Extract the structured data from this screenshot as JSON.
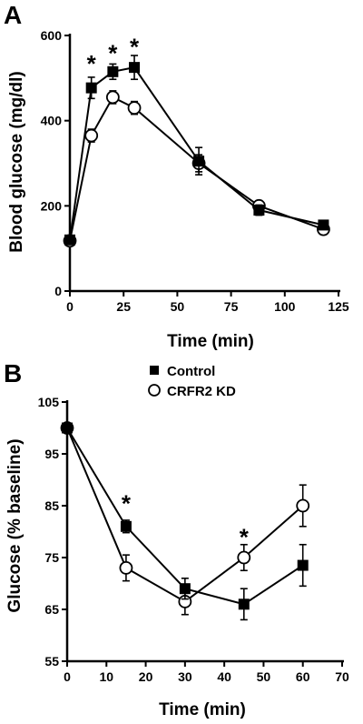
{
  "chart_data": [
    {
      "panel": "A",
      "type": "line",
      "xlabel": "Time (min)",
      "ylabel": "Blood glucose (mg/dl)",
      "xlim": [
        0,
        125
      ],
      "ylim": [
        0,
        600
      ],
      "xticks": [
        0,
        25,
        50,
        75,
        100,
        125
      ],
      "yticks": [
        0,
        200,
        400,
        600
      ],
      "grid": false,
      "series": [
        {
          "marker": "filled-square",
          "x": [
            0,
            10,
            20,
            30,
            60,
            88,
            118
          ],
          "y": [
            120,
            477,
            515,
            525,
            305,
            190,
            155
          ],
          "err": [
            8,
            25,
            18,
            28,
            32,
            12,
            10
          ]
        },
        {
          "marker": "open-circle",
          "x": [
            0,
            10,
            20,
            30,
            60,
            88,
            118
          ],
          "y": [
            118,
            365,
            455,
            430,
            300,
            200,
            145
          ],
          "err": [
            8,
            15,
            15,
            15,
            20,
            12,
            8
          ]
        }
      ],
      "annotations": [
        {
          "text": "*",
          "x": 10,
          "y": 540
        },
        {
          "text": "*",
          "x": 20,
          "y": 565
        },
        {
          "text": "*",
          "x": 30,
          "y": 580
        }
      ]
    },
    {
      "panel": "B",
      "type": "line",
      "xlabel": "Time (min)",
      "ylabel": "Glucose (% baseline)",
      "xlim": [
        0,
        70
      ],
      "ylim": [
        55,
        105
      ],
      "xticks": [
        0,
        10,
        20,
        30,
        40,
        50,
        60,
        70
      ],
      "yticks": [
        55,
        65,
        75,
        85,
        95,
        105
      ],
      "grid": false,
      "legend_position": "top-left",
      "series": [
        {
          "name": "Control",
          "marker": "filled-square",
          "x": [
            0,
            15,
            30,
            45,
            60
          ],
          "y": [
            100,
            81,
            69,
            66,
            73.5
          ],
          "err": [
            0.5,
            1.2,
            2,
            3,
            4
          ]
        },
        {
          "name": "CRFR2 KD",
          "marker": "open-circle",
          "x": [
            0,
            15,
            30,
            45,
            60
          ],
          "y": [
            100,
            73,
            66.5,
            75,
            85
          ],
          "err": [
            0.5,
            2.5,
            2.5,
            2.5,
            4
          ]
        }
      ],
      "annotations": [
        {
          "text": "*",
          "x": 15,
          "y": 86
        },
        {
          "text": "*",
          "x": 45,
          "y": 79.5
        }
      ]
    }
  ]
}
